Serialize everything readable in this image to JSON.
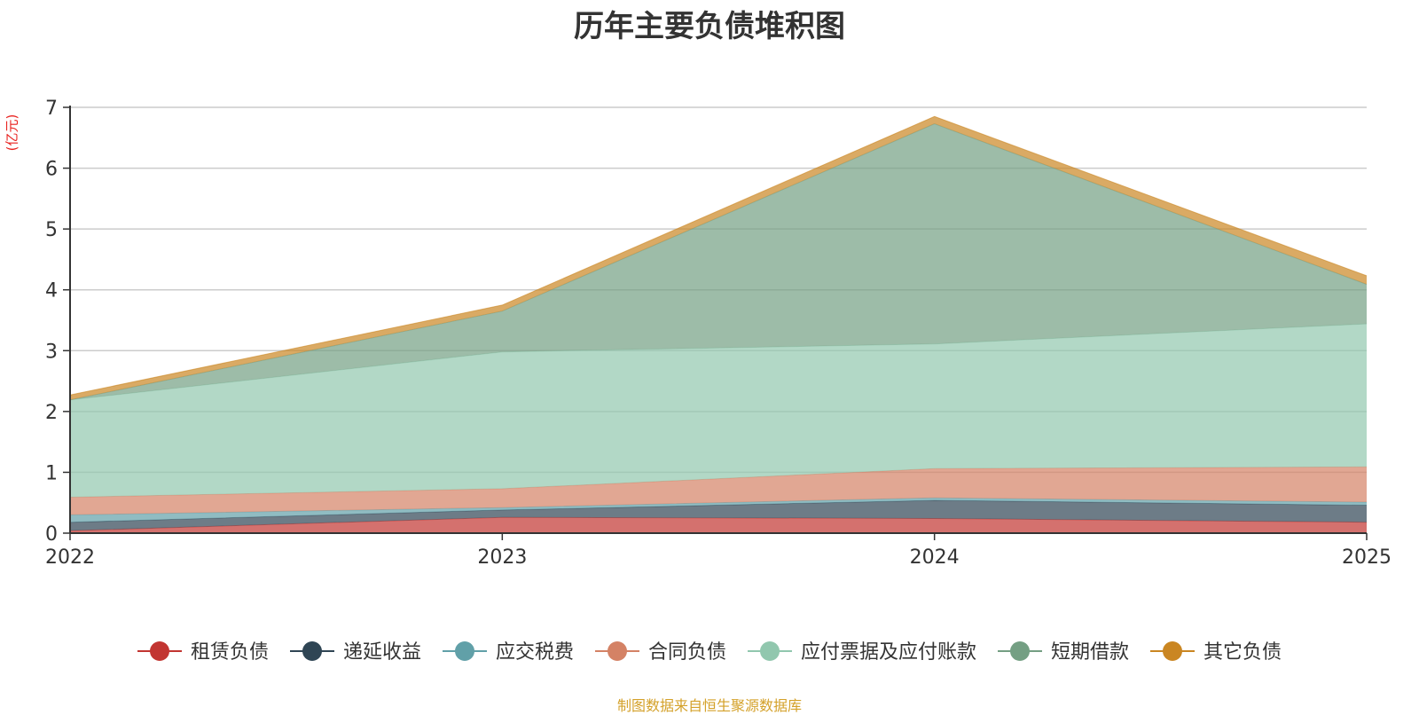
{
  "chart_data": {
    "type": "area",
    "stacked": true,
    "title": "历年主要负债堆积图",
    "unit_label": "(亿元)",
    "source_note": "制图数据来自恒生聚源数据库",
    "categories": [
      "2022",
      "2023",
      "2024",
      "2025"
    ],
    "ylim": [
      0,
      7
    ],
    "yticks": [
      0,
      1,
      2,
      3,
      4,
      5,
      6,
      7
    ],
    "grid": true,
    "legend_position": "bottom",
    "series": [
      {
        "name": "租赁负债",
        "color": "#c23531",
        "values": [
          0.04,
          0.26,
          0.24,
          0.18
        ]
      },
      {
        "name": "递延收益",
        "color": "#2f4554",
        "values": [
          0.14,
          0.12,
          0.3,
          0.28
        ]
      },
      {
        "name": "应交税费",
        "color": "#61a0a8",
        "values": [
          0.12,
          0.04,
          0.04,
          0.05
        ]
      },
      {
        "name": "合同负债",
        "color": "#d48265",
        "values": [
          0.29,
          0.31,
          0.48,
          0.58
        ]
      },
      {
        "name": "应付票据及应付账款",
        "color": "#91c7ae",
        "values": [
          1.6,
          2.25,
          2.05,
          2.35
        ]
      },
      {
        "name": "短期借款",
        "color": "#749f83",
        "values": [
          0.0,
          0.67,
          3.62,
          0.65
        ]
      },
      {
        "name": "其它负债",
        "color": "#ca8622",
        "values": [
          0.08,
          0.1,
          0.12,
          0.14
        ]
      }
    ]
  }
}
